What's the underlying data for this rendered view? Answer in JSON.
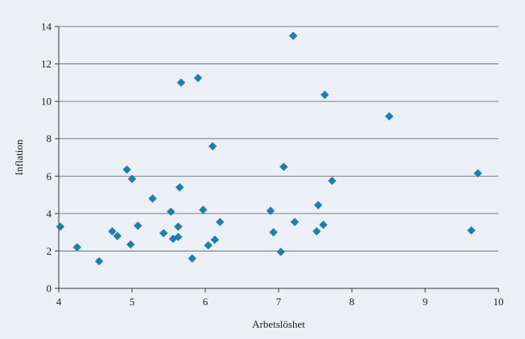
{
  "chart_data": {
    "type": "scatter",
    "title": "",
    "xlabel": "Arbetslöshet",
    "ylabel": "Inflation",
    "xlim": [
      4,
      10
    ],
    "ylim": [
      0,
      14
    ],
    "xticks": [
      4,
      5,
      6,
      7,
      8,
      9,
      10
    ],
    "yticks": [
      0,
      2,
      4,
      6,
      8,
      10,
      12,
      14
    ],
    "grid": "horizontal",
    "marker": "diamond",
    "marker_color": "#1f7fa8",
    "series": [
      {
        "points": [
          {
            "x": 4.02,
            "y": 3.3
          },
          {
            "x": 4.25,
            "y": 2.2
          },
          {
            "x": 4.55,
            "y": 1.45
          },
          {
            "x": 4.73,
            "y": 3.05
          },
          {
            "x": 4.8,
            "y": 2.8
          },
          {
            "x": 4.93,
            "y": 6.35
          },
          {
            "x": 4.98,
            "y": 2.35
          },
          {
            "x": 5.0,
            "y": 5.85
          },
          {
            "x": 5.08,
            "y": 3.35
          },
          {
            "x": 5.28,
            "y": 4.8
          },
          {
            "x": 5.43,
            "y": 2.95
          },
          {
            "x": 5.53,
            "y": 4.1
          },
          {
            "x": 5.56,
            "y": 2.65
          },
          {
            "x": 5.63,
            "y": 3.3
          },
          {
            "x": 5.63,
            "y": 2.75
          },
          {
            "x": 5.65,
            "y": 5.4
          },
          {
            "x": 5.67,
            "y": 11.0
          },
          {
            "x": 5.82,
            "y": 1.6
          },
          {
            "x": 5.9,
            "y": 11.25
          },
          {
            "x": 5.97,
            "y": 4.2
          },
          {
            "x": 6.04,
            "y": 2.3
          },
          {
            "x": 6.1,
            "y": 7.6
          },
          {
            "x": 6.13,
            "y": 2.6
          },
          {
            "x": 6.2,
            "y": 3.55
          },
          {
            "x": 6.89,
            "y": 4.15
          },
          {
            "x": 6.93,
            "y": 3.0
          },
          {
            "x": 7.03,
            "y": 1.95
          },
          {
            "x": 7.07,
            "y": 6.5
          },
          {
            "x": 7.2,
            "y": 13.5
          },
          {
            "x": 7.22,
            "y": 3.55
          },
          {
            "x": 7.52,
            "y": 3.05
          },
          {
            "x": 7.54,
            "y": 4.45
          },
          {
            "x": 7.61,
            "y": 3.4
          },
          {
            "x": 7.63,
            "y": 10.35
          },
          {
            "x": 7.73,
            "y": 5.75
          },
          {
            "x": 8.51,
            "y": 9.2
          },
          {
            "x": 9.63,
            "y": 3.1
          },
          {
            "x": 9.72,
            "y": 6.15
          }
        ]
      }
    ]
  }
}
